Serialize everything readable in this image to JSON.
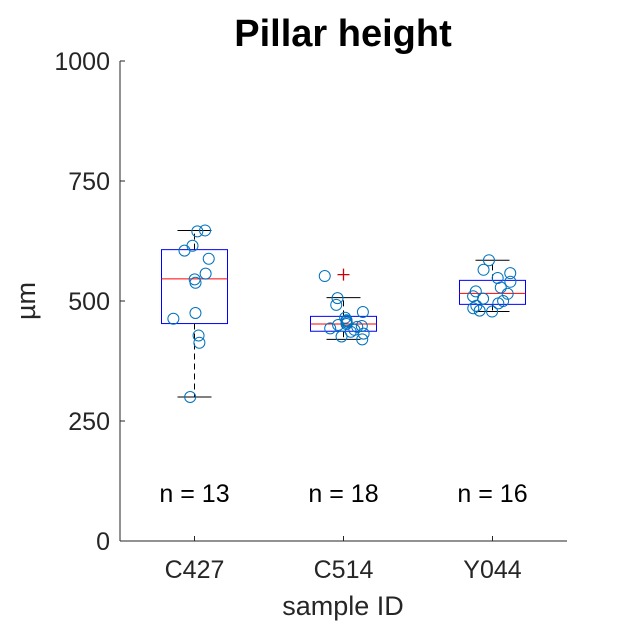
{
  "chart_data": {
    "type": "box",
    "title": "Pillar height",
    "xlabel": "sample ID",
    "ylabel": "µm",
    "ylim": [
      0,
      1000
    ],
    "yticks": [
      0,
      250,
      500,
      750,
      1000
    ],
    "categories": [
      "C427",
      "C514",
      "Y044"
    ],
    "colors": {
      "box": "#0000ff",
      "median": "#ff0000",
      "whisker": "#000000",
      "outlier": "#cc0000",
      "points": "#0072bd"
    },
    "boxes": [
      {
        "category": "C427",
        "q1": 453,
        "median": 546,
        "q3": 607,
        "whisker_low": 300,
        "whisker_high": 647,
        "outliers": [],
        "n_label": "n = 13",
        "points": [
          647,
          645,
          615,
          605,
          588,
          557,
          545,
          538,
          475,
          463,
          428,
          413,
          300
        ]
      },
      {
        "category": "C514",
        "q1": 437,
        "median": 452,
        "q3": 468,
        "whisker_low": 420,
        "whisker_high": 507,
        "outliers": [
          555
        ],
        "n_label": "n = 18",
        "points": [
          552,
          506,
          492,
          477,
          465,
          460,
          458,
          455,
          452,
          450,
          448,
          446,
          443,
          440,
          436,
          432,
          426,
          420
        ]
      },
      {
        "category": "Y044",
        "q1": 493,
        "median": 516,
        "q3": 543,
        "whisker_low": 478,
        "whisker_high": 585,
        "outliers": [],
        "n_label": "n = 16",
        "points": [
          585,
          565,
          558,
          548,
          540,
          528,
          520,
          515,
          510,
          505,
          500,
          495,
          490,
          485,
          480,
          478
        ]
      }
    ]
  }
}
